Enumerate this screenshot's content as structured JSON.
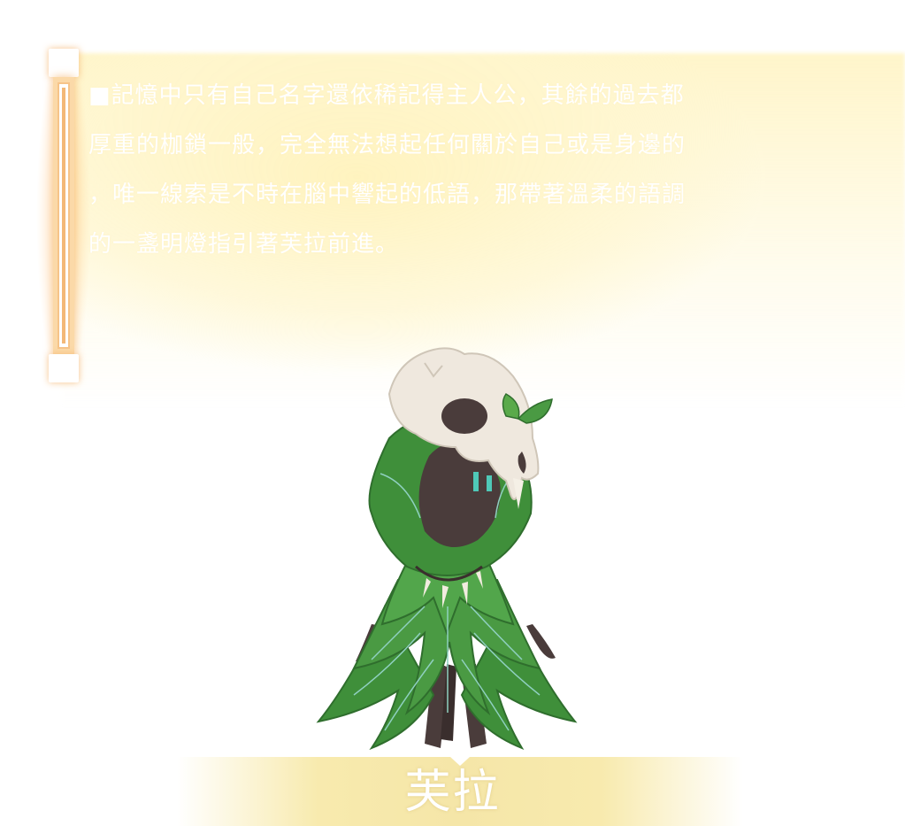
{
  "story": {
    "lines": [
      "■記憶中只有自己名字還依稀記得主人公，其餘的過去都",
      "厚重的枷鎖一般，完全無法想起任何關於自己或是身邊的",
      "，唯一線索是不時在腦中響起的低語，那帶著溫柔的語調",
      "的一盞明燈指引著芙拉前進。"
    ]
  },
  "character": {
    "name": "芙拉",
    "portrait_icon": "leaf-cloaked-skull-character"
  },
  "colors": {
    "panel_yellow": "#fdf0be",
    "scroll_accent": "#f3b877",
    "leaf_green": "#3f8f3a",
    "leaf_vein": "#8fd0c0",
    "skull": "#efe8de",
    "shadow_body": "#4a3c3b",
    "banner": "#f5e6a8"
  }
}
